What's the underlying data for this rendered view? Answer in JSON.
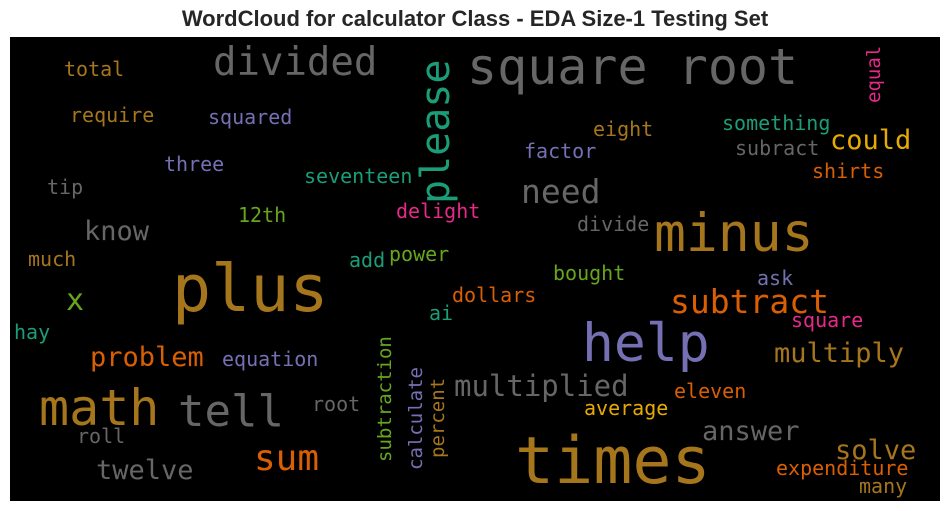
{
  "title": "WordCloud for calculator Class - EDA Size-1 Testing Set",
  "colors": {
    "background": "#000000",
    "gray": "#666666",
    "brown": "#a6761d",
    "teal": "#1b9e77",
    "purple": "#7570b3",
    "orange": "#d95f02",
    "pink": "#e7298a",
    "green": "#66a61e",
    "gold": "#e6ab02"
  },
  "words": [
    {
      "text": "square root",
      "color": "gray"
    },
    {
      "text": "divided",
      "color": "gray"
    },
    {
      "text": "please",
      "color": "teal",
      "orientation": "vertical"
    },
    {
      "text": "equal",
      "color": "pink",
      "orientation": "vertical"
    },
    {
      "text": "total",
      "color": "brown"
    },
    {
      "text": "require",
      "color": "brown"
    },
    {
      "text": "squared",
      "color": "purple"
    },
    {
      "text": "something",
      "color": "teal"
    },
    {
      "text": "eight",
      "color": "brown"
    },
    {
      "text": "could",
      "color": "gold"
    },
    {
      "text": "factor",
      "color": "purple"
    },
    {
      "text": "subract",
      "color": "gray"
    },
    {
      "text": "three",
      "color": "purple"
    },
    {
      "text": "seventeen",
      "color": "teal"
    },
    {
      "text": "shirts",
      "color": "orange"
    },
    {
      "text": "tip",
      "color": "gray"
    },
    {
      "text": "need",
      "color": "gray"
    },
    {
      "text": "delight",
      "color": "pink"
    },
    {
      "text": "12th",
      "color": "green"
    },
    {
      "text": "divide",
      "color": "gray"
    },
    {
      "text": "know",
      "color": "gray"
    },
    {
      "text": "minus",
      "color": "brown"
    },
    {
      "text": "much",
      "color": "brown"
    },
    {
      "text": "add",
      "color": "teal"
    },
    {
      "text": "power",
      "color": "green"
    },
    {
      "text": "plus",
      "color": "brown"
    },
    {
      "text": "bought",
      "color": "green"
    },
    {
      "text": "ask",
      "color": "purple"
    },
    {
      "text": "x",
      "color": "green"
    },
    {
      "text": "dollars",
      "color": "orange"
    },
    {
      "text": "subtract",
      "color": "orange"
    },
    {
      "text": "ai",
      "color": "teal"
    },
    {
      "text": "square",
      "color": "pink"
    },
    {
      "text": "hay",
      "color": "teal"
    },
    {
      "text": "help",
      "color": "purple"
    },
    {
      "text": "problem",
      "color": "orange"
    },
    {
      "text": "equation",
      "color": "purple"
    },
    {
      "text": "multiply",
      "color": "brown"
    },
    {
      "text": "subtraction",
      "color": "green",
      "orientation": "vertical"
    },
    {
      "text": "calculate",
      "color": "purple",
      "orientation": "vertical"
    },
    {
      "text": "percent",
      "color": "brown",
      "orientation": "vertical"
    },
    {
      "text": "multiplied",
      "color": "gray"
    },
    {
      "text": "math",
      "color": "brown"
    },
    {
      "text": "tell",
      "color": "gray"
    },
    {
      "text": "root",
      "color": "gray"
    },
    {
      "text": "eleven",
      "color": "orange"
    },
    {
      "text": "average",
      "color": "gold"
    },
    {
      "text": "roll",
      "color": "gray"
    },
    {
      "text": "answer",
      "color": "gray"
    },
    {
      "text": "times",
      "color": "brown"
    },
    {
      "text": "solve",
      "color": "brown"
    },
    {
      "text": "sum",
      "color": "orange"
    },
    {
      "text": "twelve",
      "color": "gray"
    },
    {
      "text": "expenditure",
      "color": "orange"
    },
    {
      "text": "many",
      "color": "brown"
    }
  ]
}
